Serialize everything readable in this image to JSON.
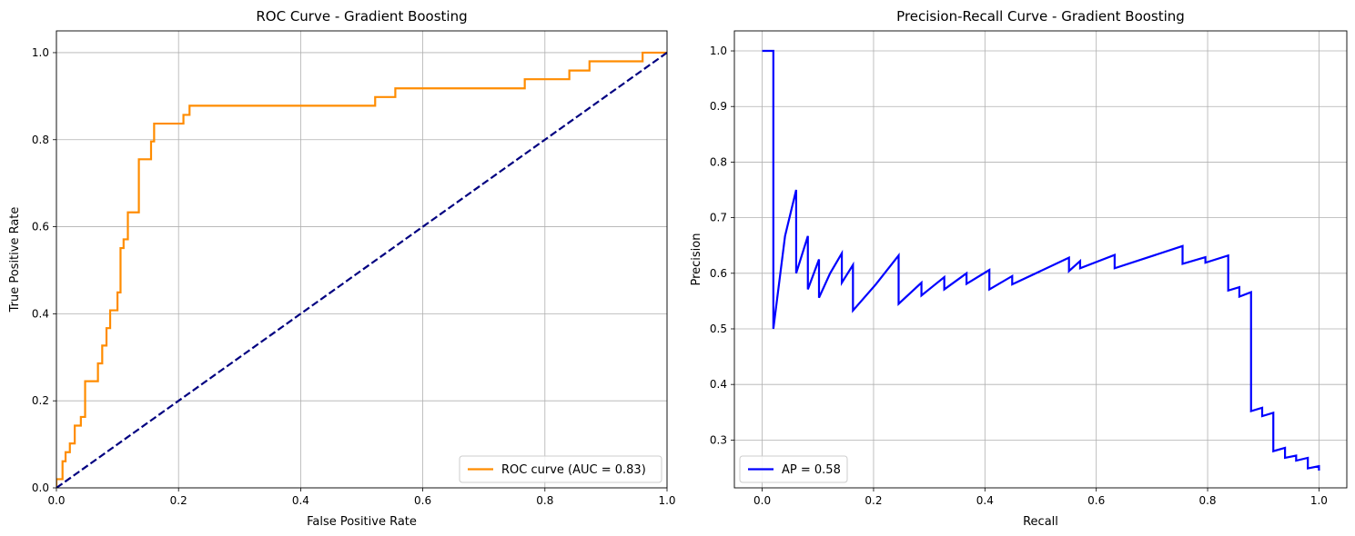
{
  "chart_data": [
    {
      "type": "line",
      "title": "ROC Curve - Gradient Boosting",
      "xlabel": "False Positive Rate",
      "ylabel": "True Positive Rate",
      "xlim": [
        0,
        1
      ],
      "ylim": [
        0,
        1.05
      ],
      "xticks": [
        "0.0",
        "0.2",
        "0.4",
        "0.6",
        "0.8",
        "1.0"
      ],
      "yticks": [
        "0.0",
        "0.2",
        "0.4",
        "0.6",
        "0.8",
        "1.0"
      ],
      "grid": true,
      "legend_position": "lower right",
      "series": [
        {
          "name": "ROC curve (AUC = 0.83)",
          "color": "#ff8c00",
          "dash": "solid",
          "x": [
            0,
            0,
            0.01,
            0.01,
            0.015,
            0.015,
            0.022,
            0.022,
            0.03,
            0.03,
            0.04,
            0.04,
            0.047,
            0.047,
            0.068,
            0.068,
            0.075,
            0.075,
            0.082,
            0.082,
            0.088,
            0.088,
            0.1,
            0.1,
            0.105,
            0.105,
            0.11,
            0.11,
            0.117,
            0.117,
            0.122,
            0.122,
            0.135,
            0.135,
            0.155,
            0.155,
            0.16,
            0.16,
            0.208,
            0.208,
            0.218,
            0.218,
            0.522,
            0.522,
            0.555,
            0.555,
            0.767,
            0.767,
            0.84,
            0.84,
            0.873,
            0.873,
            0.96,
            0.96,
            1.0
          ],
          "y": [
            0,
            0.02,
            0.02,
            0.061,
            0.061,
            0.082,
            0.082,
            0.102,
            0.102,
            0.143,
            0.143,
            0.163,
            0.163,
            0.245,
            0.245,
            0.286,
            0.286,
            0.327,
            0.327,
            0.367,
            0.367,
            0.408,
            0.408,
            0.449,
            0.449,
            0.551,
            0.551,
            0.571,
            0.571,
            0.633,
            0.633,
            0.633,
            0.633,
            0.755,
            0.755,
            0.796,
            0.796,
            0.837,
            0.837,
            0.857,
            0.857,
            0.878,
            0.878,
            0.898,
            0.898,
            0.918,
            0.918,
            0.939,
            0.939,
            0.959,
            0.959,
            0.98,
            0.98,
            1.0,
            1.0
          ]
        },
        {
          "name": "",
          "color": "#000080",
          "dash": "dashed",
          "x": [
            0,
            1
          ],
          "y": [
            0,
            1
          ]
        }
      ]
    },
    {
      "type": "line",
      "title": "Precision-Recall Curve - Gradient Boosting",
      "xlabel": "Recall",
      "ylabel": "Precision",
      "xlim": [
        -0.05,
        1.05
      ],
      "ylim": [
        0.214,
        1.036
      ],
      "xticks": [
        "0.0",
        "0.2",
        "0.4",
        "0.6",
        "0.8",
        "1.0"
      ],
      "yticks": [
        "0.3",
        "0.4",
        "0.5",
        "0.6",
        "0.7",
        "0.8",
        "0.9",
        "1.0"
      ],
      "grid": true,
      "legend_position": "lower left",
      "series": [
        {
          "name": "AP = 0.58",
          "color": "#0000ff",
          "dash": "solid",
          "x": [
            0,
            0.02,
            0.02,
            0.041,
            0.061,
            0.061,
            0.082,
            0.082,
            0.102,
            0.102,
            0.122,
            0.143,
            0.143,
            0.163,
            0.163,
            0.204,
            0.245,
            0.245,
            0.286,
            0.286,
            0.327,
            0.327,
            0.367,
            0.367,
            0.408,
            0.408,
            0.449,
            0.449,
            0.551,
            0.551,
            0.571,
            0.571,
            0.633,
            0.633,
            0.755,
            0.755,
            0.796,
            0.796,
            0.837,
            0.837,
            0.857,
            0.857,
            0.878,
            0.878,
            0.878,
            0.898,
            0.898,
            0.918,
            0.918,
            0.939,
            0.939,
            0.959,
            0.959,
            0.98,
            0.98,
            1.0,
            1.0
          ],
          "y": [
            1.0,
            1.0,
            0.5,
            0.667,
            0.75,
            0.6,
            0.667,
            0.571,
            0.625,
            0.556,
            0.6,
            0.636,
            0.583,
            0.615,
            0.533,
            0.58,
            0.632,
            0.545,
            0.583,
            0.56,
            0.593,
            0.571,
            0.6,
            0.581,
            0.606,
            0.571,
            0.595,
            0.58,
            0.628,
            0.604,
            0.622,
            0.609,
            0.633,
            0.609,
            0.649,
            0.617,
            0.629,
            0.619,
            0.632,
            0.569,
            0.575,
            0.558,
            0.566,
            0.566,
            0.352,
            0.358,
            0.343,
            0.349,
            0.28,
            0.286,
            0.268,
            0.272,
            0.263,
            0.268,
            0.249,
            0.253,
            0.245
          ]
        }
      ]
    }
  ]
}
